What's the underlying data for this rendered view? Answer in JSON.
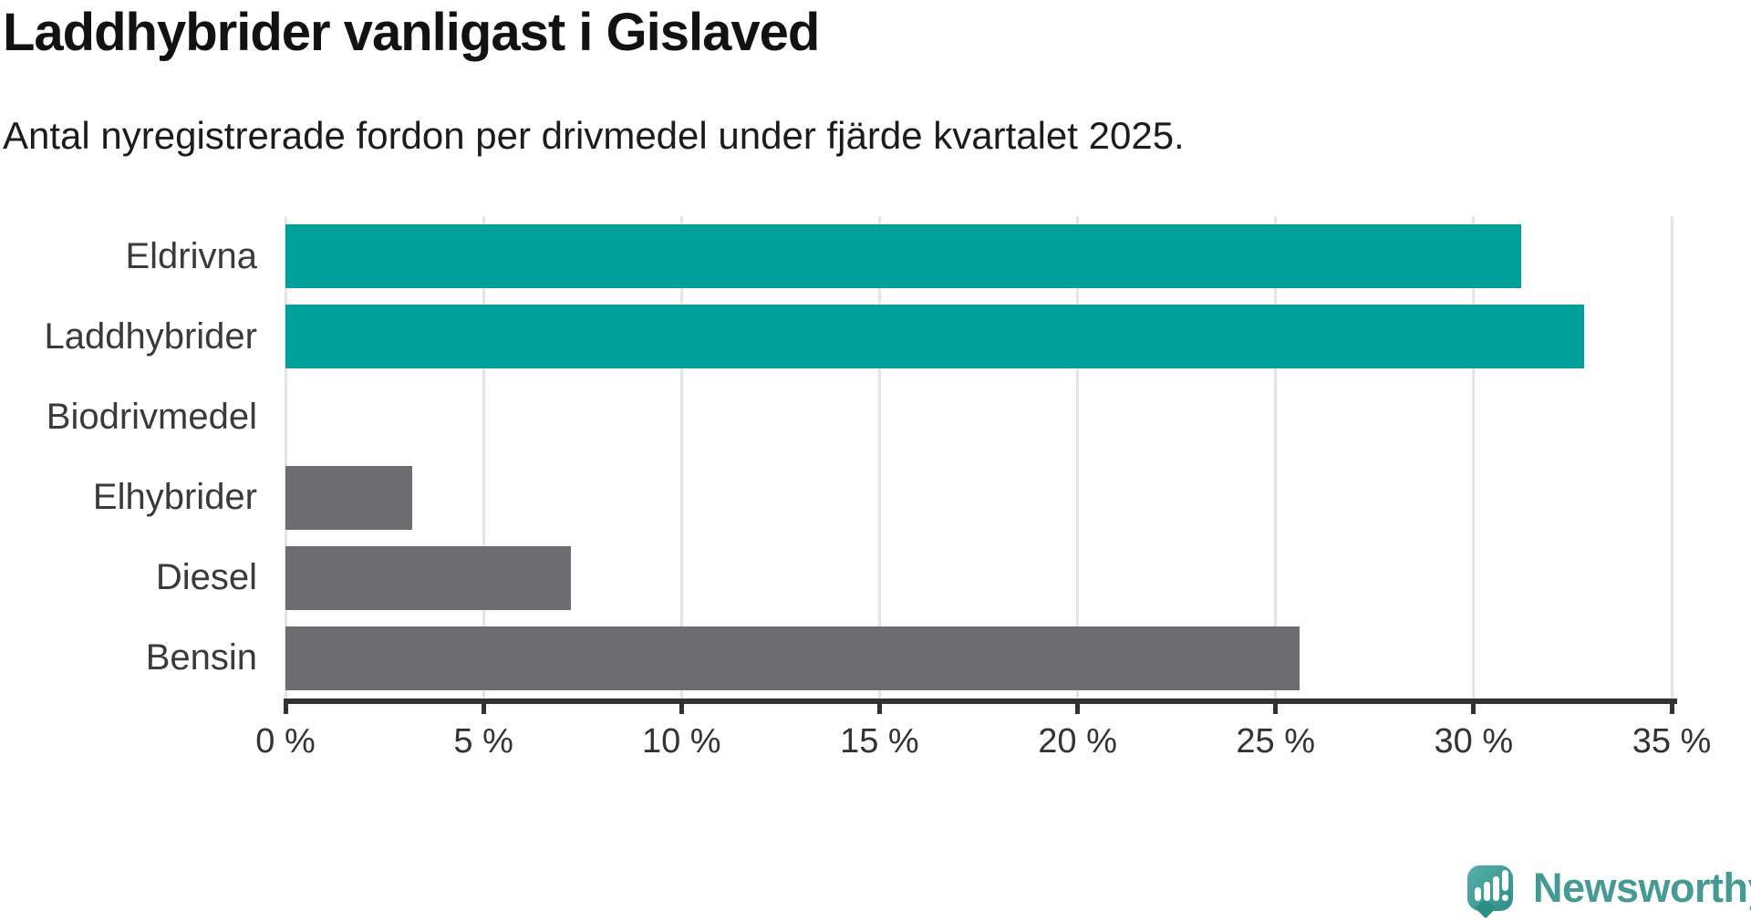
{
  "chart_data": {
    "type": "bar",
    "orientation": "horizontal",
    "title": "Laddhybrider vanligast i Gislaved",
    "subtitle": "Antal nyregistrerade fordon per drivmedel under fjärde kvartalet 2025.",
    "categories": [
      "Eldrivna",
      "Laddhybrider",
      "Biodrivmedel",
      "Elhybrider",
      "Diesel",
      "Bensin"
    ],
    "values": [
      31.2,
      32.8,
      0,
      3.2,
      7.2,
      25.6
    ],
    "value_unit": "percent",
    "xlim": [
      0,
      35
    ],
    "x_tick_labels": [
      "0 %",
      "5 %",
      "10 %",
      "15 %",
      "20 %",
      "25 %",
      "30 %",
      "35 %"
    ],
    "grid": true,
    "legend": false,
    "colors": {
      "highlight": "#00A09A",
      "default": "#6C6C71",
      "gridline": "#E4E4E4",
      "axis": "#323232"
    },
    "bar_colors": [
      "#00A09A",
      "#00A09A",
      "#6C6C71",
      "#6C6C71",
      "#6C6C71",
      "#6C6C71"
    ]
  },
  "branding": {
    "logo_text": "Newsworthy",
    "logo_color": "#469A95"
  }
}
